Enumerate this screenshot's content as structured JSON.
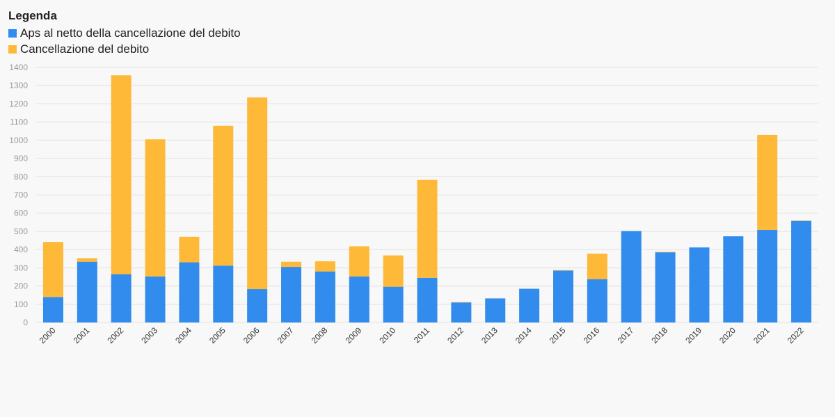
{
  "legend": {
    "title": "Legenda"
  },
  "colors": {
    "aps": "#318ced",
    "cancellation": "#ffb938",
    "grid": "#e8e8e8"
  },
  "chart_data": {
    "type": "bar",
    "stacked": true,
    "categories": [
      "2000",
      "2001",
      "2002",
      "2003",
      "2004",
      "2005",
      "2006",
      "2007",
      "2008",
      "2009",
      "2010",
      "2011",
      "2012",
      "2013",
      "2014",
      "2015",
      "2016",
      "2017",
      "2018",
      "2019",
      "2020",
      "2021",
      "2022"
    ],
    "series": [
      {
        "name": "Aps al netto della cancellazione del debito",
        "color": "#318ced",
        "values": [
          140,
          333,
          265,
          253,
          330,
          312,
          183,
          305,
          280,
          253,
          196,
          245,
          110,
          132,
          185,
          285,
          238,
          502,
          385,
          412,
          473,
          508,
          558
        ]
      },
      {
        "name": "Cancellazione del debito",
        "color": "#ffb938",
        "values": [
          302,
          20,
          1092,
          753,
          140,
          768,
          1052,
          28,
          56,
          165,
          172,
          538,
          2,
          0,
          0,
          3,
          140,
          0,
          3,
          0,
          0,
          522,
          2
        ]
      }
    ],
    "ylim": [
      0,
      1400
    ],
    "yticks": [
      0,
      100,
      200,
      300,
      400,
      500,
      600,
      700,
      800,
      900,
      1000,
      1100,
      1200,
      1300,
      1400
    ],
    "grid": true,
    "legend_position": "top-left"
  }
}
